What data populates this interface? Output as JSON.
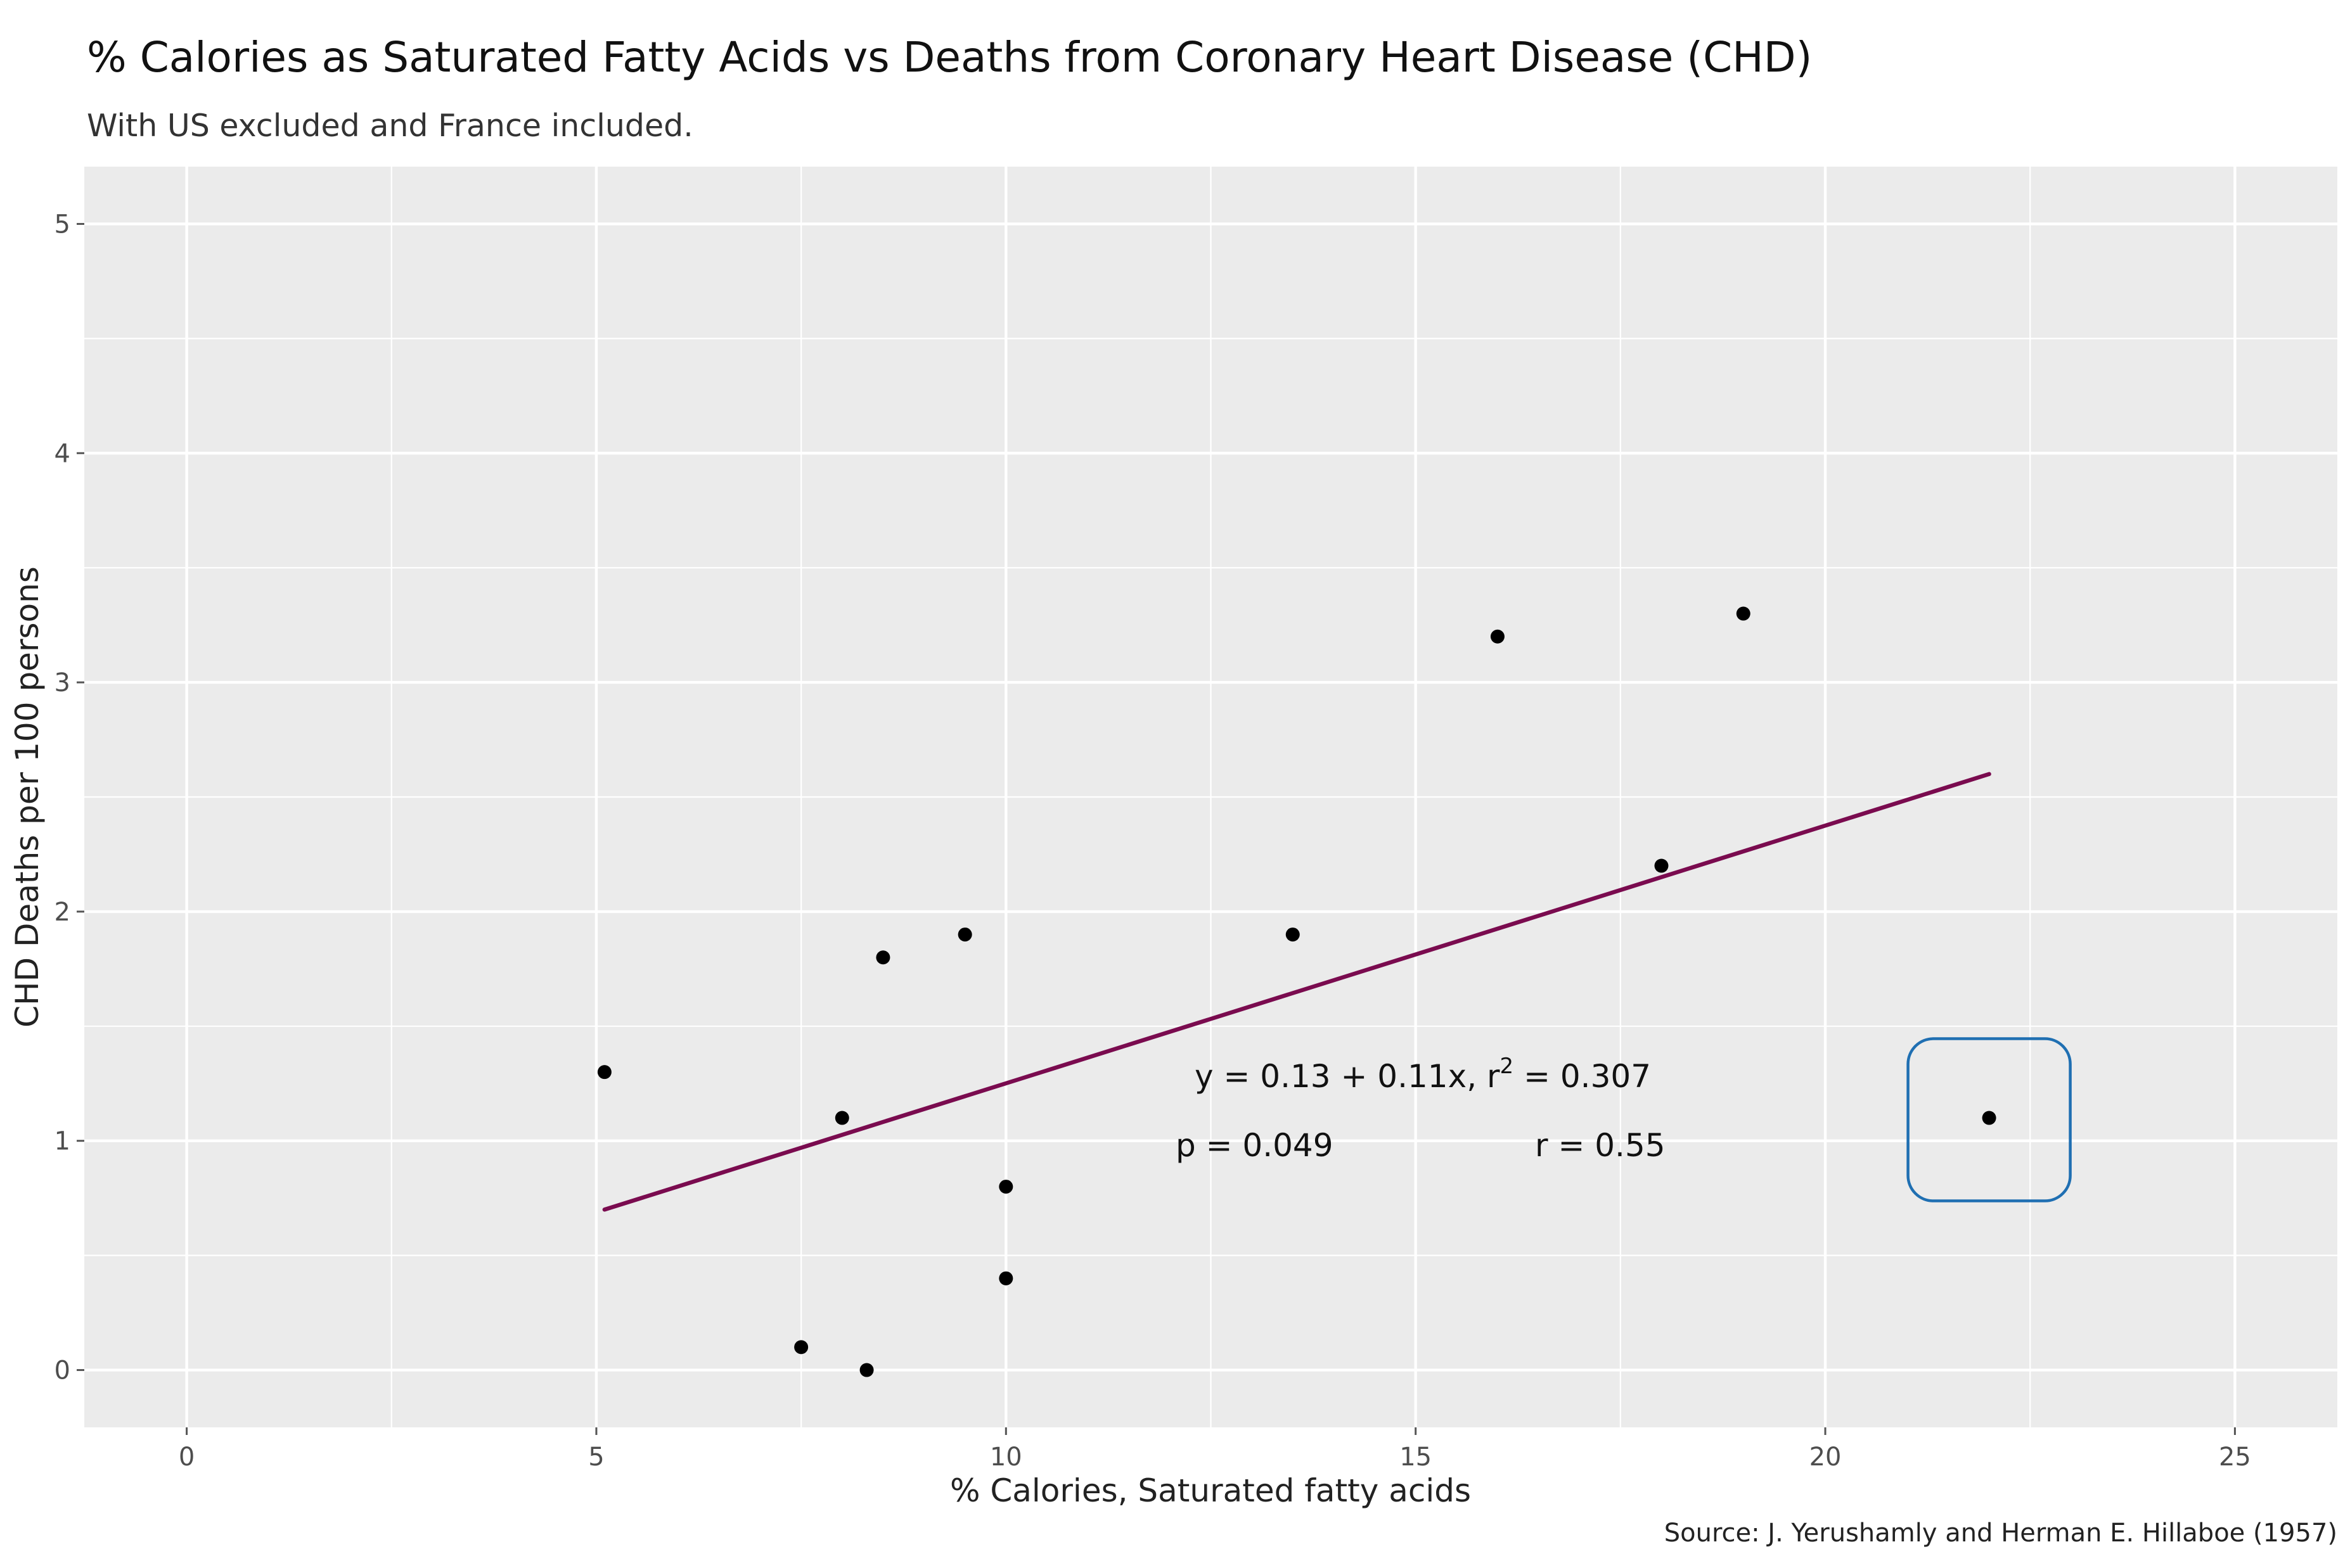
{
  "chart_data": {
    "type": "scatter",
    "title": "% Calories as Saturated Fatty Acids vs Deaths from Coronary Heart Disease (CHD)",
    "subtitle": "With US excluded and France included.",
    "xlabel": "% Calories, Saturated fatty acids",
    "ylabel": "CHD Deaths per 100 persons",
    "caption": "Source: J. Yerushamly and Herman E. Hillaboe (1957)",
    "xlim": [
      -1.25,
      26.25
    ],
    "ylim": [
      -0.25,
      5.25
    ],
    "x_ticks": [
      0,
      5,
      10,
      15,
      20,
      25
    ],
    "y_ticks": [
      0,
      1,
      2,
      3,
      4,
      5
    ],
    "x_tick_labels": [
      "0",
      "5",
      "10",
      "15",
      "20",
      "25"
    ],
    "y_tick_labels": [
      "0",
      "1",
      "2",
      "3",
      "4",
      "5"
    ],
    "grid": true,
    "points": [
      {
        "x": 5.1,
        "y": 1.3
      },
      {
        "x": 7.5,
        "y": 0.1
      },
      {
        "x": 8.0,
        "y": 1.1
      },
      {
        "x": 8.3,
        "y": 0.0
      },
      {
        "x": 8.5,
        "y": 1.8
      },
      {
        "x": 9.5,
        "y": 1.9
      },
      {
        "x": 10.0,
        "y": 0.8
      },
      {
        "x": 10.0,
        "y": 0.4
      },
      {
        "x": 13.5,
        "y": 1.9
      },
      {
        "x": 16.0,
        "y": 3.2
      },
      {
        "x": 18.0,
        "y": 2.2
      },
      {
        "x": 19.0,
        "y": 3.3
      },
      {
        "x": 22.0,
        "y": 1.1
      }
    ],
    "regression_line": {
      "x": [
        5.1,
        22.0
      ],
      "y": [
        0.7,
        2.6
      ],
      "color": "#7a0b4f"
    },
    "annotations": {
      "equation": "y = 0.13 + 0.11x,  r",
      "r2_sup": "2",
      "r2_value": " =  0.307",
      "p_value": "p = 0.049",
      "r_value": "r = 0.55"
    },
    "highlight_point": {
      "x": 22.0,
      "y": 1.1,
      "color": "#1f6fb2"
    },
    "colors": {
      "panel_background": "#ebebeb",
      "grid": "#ffffff",
      "point": "#000000"
    }
  }
}
